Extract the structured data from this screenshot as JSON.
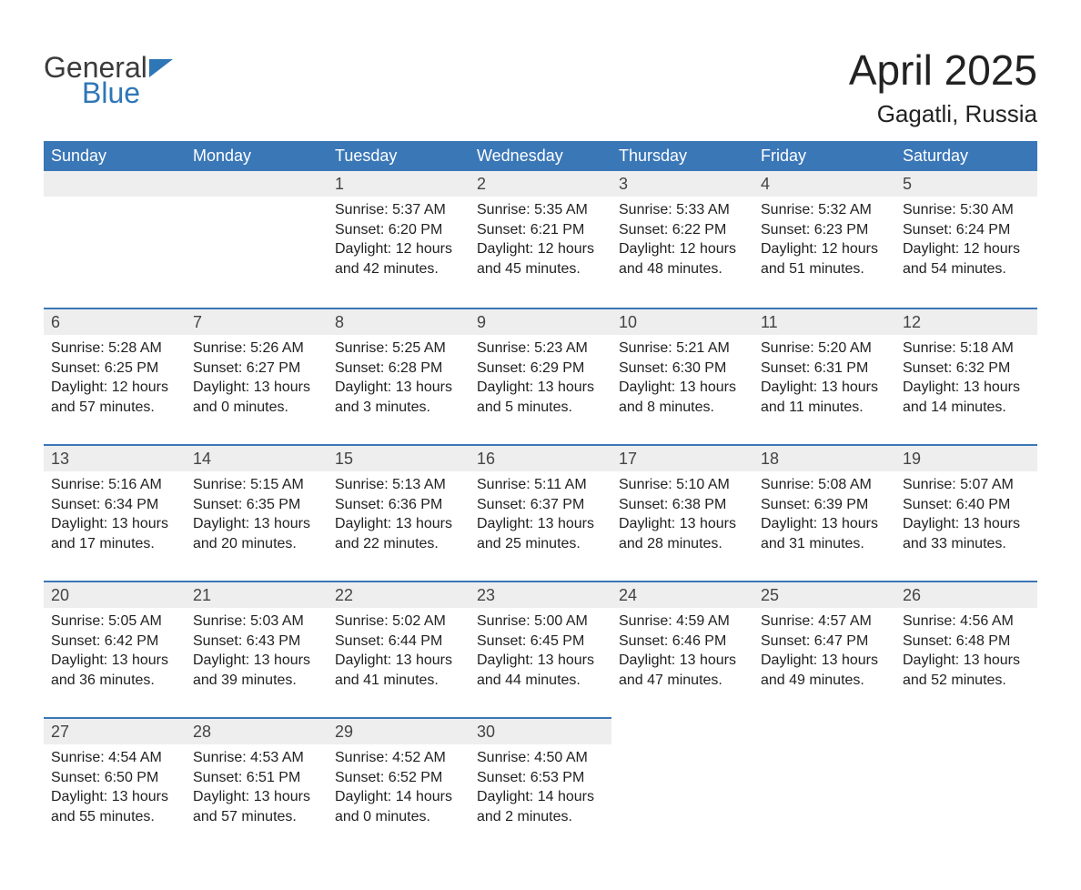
{
  "brand": {
    "word1": "General",
    "word2": "Blue"
  },
  "title": "April 2025",
  "location": "Gagatli, Russia",
  "colors": {
    "header_bg": "#3a77b7",
    "header_text": "#ffffff",
    "daynum_bg": "#eeeeee",
    "row_divider": "#3a77b7",
    "page_bg": "#ffffff",
    "text": "#222222",
    "brand_blue": "#2f76b6",
    "brand_gray": "#3b3b3b"
  },
  "weekdays": [
    "Sunday",
    "Monday",
    "Tuesday",
    "Wednesday",
    "Thursday",
    "Friday",
    "Saturday"
  ],
  "weeks": [
    [
      {
        "num": "",
        "sunrise": "",
        "sunset": "",
        "daylight": ""
      },
      {
        "num": "",
        "sunrise": "",
        "sunset": "",
        "daylight": ""
      },
      {
        "num": "1",
        "sunrise": "Sunrise: 5:37 AM",
        "sunset": "Sunset: 6:20 PM",
        "daylight": "Daylight: 12 hours and 42 minutes."
      },
      {
        "num": "2",
        "sunrise": "Sunrise: 5:35 AM",
        "sunset": "Sunset: 6:21 PM",
        "daylight": "Daylight: 12 hours and 45 minutes."
      },
      {
        "num": "3",
        "sunrise": "Sunrise: 5:33 AM",
        "sunset": "Sunset: 6:22 PM",
        "daylight": "Daylight: 12 hours and 48 minutes."
      },
      {
        "num": "4",
        "sunrise": "Sunrise: 5:32 AM",
        "sunset": "Sunset: 6:23 PM",
        "daylight": "Daylight: 12 hours and 51 minutes."
      },
      {
        "num": "5",
        "sunrise": "Sunrise: 5:30 AM",
        "sunset": "Sunset: 6:24 PM",
        "daylight": "Daylight: 12 hours and 54 minutes."
      }
    ],
    [
      {
        "num": "6",
        "sunrise": "Sunrise: 5:28 AM",
        "sunset": "Sunset: 6:25 PM",
        "daylight": "Daylight: 12 hours and 57 minutes."
      },
      {
        "num": "7",
        "sunrise": "Sunrise: 5:26 AM",
        "sunset": "Sunset: 6:27 PM",
        "daylight": "Daylight: 13 hours and 0 minutes."
      },
      {
        "num": "8",
        "sunrise": "Sunrise: 5:25 AM",
        "sunset": "Sunset: 6:28 PM",
        "daylight": "Daylight: 13 hours and 3 minutes."
      },
      {
        "num": "9",
        "sunrise": "Sunrise: 5:23 AM",
        "sunset": "Sunset: 6:29 PM",
        "daylight": "Daylight: 13 hours and 5 minutes."
      },
      {
        "num": "10",
        "sunrise": "Sunrise: 5:21 AM",
        "sunset": "Sunset: 6:30 PM",
        "daylight": "Daylight: 13 hours and 8 minutes."
      },
      {
        "num": "11",
        "sunrise": "Sunrise: 5:20 AM",
        "sunset": "Sunset: 6:31 PM",
        "daylight": "Daylight: 13 hours and 11 minutes."
      },
      {
        "num": "12",
        "sunrise": "Sunrise: 5:18 AM",
        "sunset": "Sunset: 6:32 PM",
        "daylight": "Daylight: 13 hours and 14 minutes."
      }
    ],
    [
      {
        "num": "13",
        "sunrise": "Sunrise: 5:16 AM",
        "sunset": "Sunset: 6:34 PM",
        "daylight": "Daylight: 13 hours and 17 minutes."
      },
      {
        "num": "14",
        "sunrise": "Sunrise: 5:15 AM",
        "sunset": "Sunset: 6:35 PM",
        "daylight": "Daylight: 13 hours and 20 minutes."
      },
      {
        "num": "15",
        "sunrise": "Sunrise: 5:13 AM",
        "sunset": "Sunset: 6:36 PM",
        "daylight": "Daylight: 13 hours and 22 minutes."
      },
      {
        "num": "16",
        "sunrise": "Sunrise: 5:11 AM",
        "sunset": "Sunset: 6:37 PM",
        "daylight": "Daylight: 13 hours and 25 minutes."
      },
      {
        "num": "17",
        "sunrise": "Sunrise: 5:10 AM",
        "sunset": "Sunset: 6:38 PM",
        "daylight": "Daylight: 13 hours and 28 minutes."
      },
      {
        "num": "18",
        "sunrise": "Sunrise: 5:08 AM",
        "sunset": "Sunset: 6:39 PM",
        "daylight": "Daylight: 13 hours and 31 minutes."
      },
      {
        "num": "19",
        "sunrise": "Sunrise: 5:07 AM",
        "sunset": "Sunset: 6:40 PM",
        "daylight": "Daylight: 13 hours and 33 minutes."
      }
    ],
    [
      {
        "num": "20",
        "sunrise": "Sunrise: 5:05 AM",
        "sunset": "Sunset: 6:42 PM",
        "daylight": "Daylight: 13 hours and 36 minutes."
      },
      {
        "num": "21",
        "sunrise": "Sunrise: 5:03 AM",
        "sunset": "Sunset: 6:43 PM",
        "daylight": "Daylight: 13 hours and 39 minutes."
      },
      {
        "num": "22",
        "sunrise": "Sunrise: 5:02 AM",
        "sunset": "Sunset: 6:44 PM",
        "daylight": "Daylight: 13 hours and 41 minutes."
      },
      {
        "num": "23",
        "sunrise": "Sunrise: 5:00 AM",
        "sunset": "Sunset: 6:45 PM",
        "daylight": "Daylight: 13 hours and 44 minutes."
      },
      {
        "num": "24",
        "sunrise": "Sunrise: 4:59 AM",
        "sunset": "Sunset: 6:46 PM",
        "daylight": "Daylight: 13 hours and 47 minutes."
      },
      {
        "num": "25",
        "sunrise": "Sunrise: 4:57 AM",
        "sunset": "Sunset: 6:47 PM",
        "daylight": "Daylight: 13 hours and 49 minutes."
      },
      {
        "num": "26",
        "sunrise": "Sunrise: 4:56 AM",
        "sunset": "Sunset: 6:48 PM",
        "daylight": "Daylight: 13 hours and 52 minutes."
      }
    ],
    [
      {
        "num": "27",
        "sunrise": "Sunrise: 4:54 AM",
        "sunset": "Sunset: 6:50 PM",
        "daylight": "Daylight: 13 hours and 55 minutes."
      },
      {
        "num": "28",
        "sunrise": "Sunrise: 4:53 AM",
        "sunset": "Sunset: 6:51 PM",
        "daylight": "Daylight: 13 hours and 57 minutes."
      },
      {
        "num": "29",
        "sunrise": "Sunrise: 4:52 AM",
        "sunset": "Sunset: 6:52 PM",
        "daylight": "Daylight: 14 hours and 0 minutes."
      },
      {
        "num": "30",
        "sunrise": "Sunrise: 4:50 AM",
        "sunset": "Sunset: 6:53 PM",
        "daylight": "Daylight: 14 hours and 2 minutes."
      },
      {
        "num": "",
        "sunrise": "",
        "sunset": "",
        "daylight": ""
      },
      {
        "num": "",
        "sunrise": "",
        "sunset": "",
        "daylight": ""
      },
      {
        "num": "",
        "sunrise": "",
        "sunset": "",
        "daylight": ""
      }
    ]
  ]
}
